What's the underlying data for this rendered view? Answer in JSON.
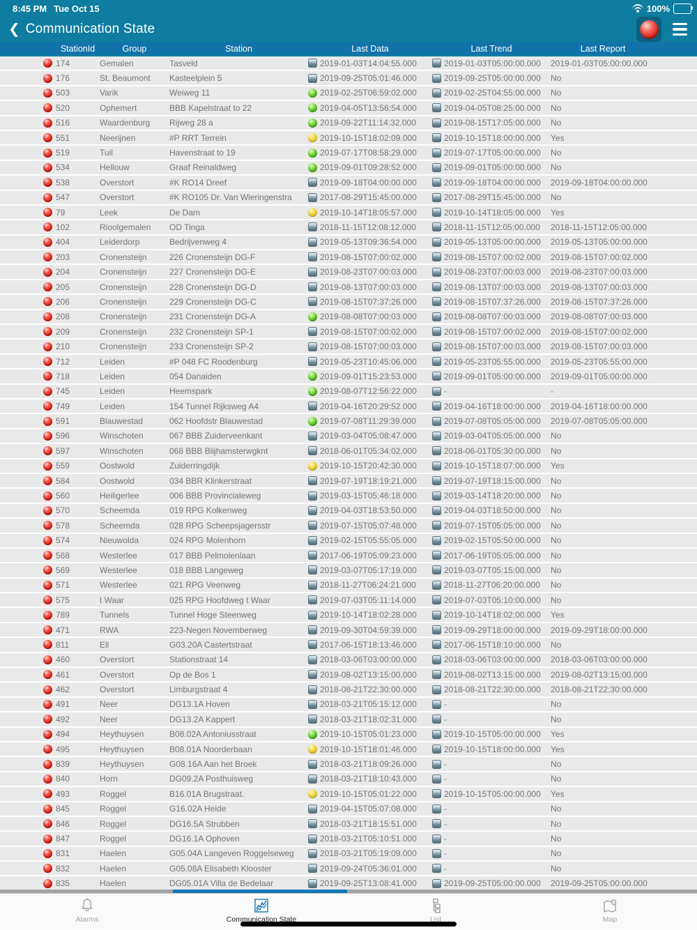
{
  "status_bar": {
    "time": "8:45 PM",
    "date": "Tue Oct 15",
    "battery_percent": "100%"
  },
  "nav": {
    "back_glyph": "❮",
    "title": "Communication State"
  },
  "colors": {
    "nav_teal": "#0E7D9F",
    "column_header_blue": "#1173A9",
    "accent_blue": "#1178B5",
    "row_gray": "#E9E9E9",
    "status_red": "#CF1712",
    "status_green": "#3BA313",
    "status_yellow": "#D9B70A"
  },
  "table": {
    "columns": [
      "StationId",
      "Group",
      "Station",
      "Last Data",
      "Last Trend",
      "Last Report"
    ],
    "rows": [
      {
        "id": "174",
        "group": "Gemalen",
        "station": "Tasveld",
        "data_icon": "disk",
        "data": "2019-01-03T14:04:55.000",
        "trend_icon": "disk",
        "trend": "2019-01-03T05:00:00.000",
        "report": "2019-01-03T05:00:00.000"
      },
      {
        "id": "176",
        "group": "St. Beaumont",
        "station": "Kasteelplein 5",
        "data_icon": "disk",
        "data": "2019-09-25T05:01:46.000",
        "trend_icon": "disk",
        "trend": "2019-09-25T05:00:00.000",
        "report": "No"
      },
      {
        "id": "503",
        "group": "Varik",
        "station": "Weiweg 11",
        "data_icon": "green",
        "data": "2019-02-25T06:59:02.000",
        "trend_icon": "disk",
        "trend": "2019-02-25T04:55:00.000",
        "report": "No"
      },
      {
        "id": "520",
        "group": "Ophemert",
        "station": "BBB Kapelstraat to 22",
        "data_icon": "green",
        "data": "2019-04-05T13:56:54.000",
        "trend_icon": "disk",
        "trend": "2019-04-05T08:25:00.000",
        "report": "No"
      },
      {
        "id": "516",
        "group": "Waardenburg",
        "station": "Rijweg 28 a",
        "data_icon": "green",
        "data": "2019-09-22T11:14:32.000",
        "trend_icon": "disk",
        "trend": "2019-08-15T17:05:00.000",
        "report": "No"
      },
      {
        "id": "551",
        "group": "Neerijnen",
        "station": "#P RRT Terrein",
        "data_icon": "yellow",
        "data": "2019-10-15T18:02:09.000",
        "trend_icon": "disk",
        "trend": "2019-10-15T18:00:00.000",
        "report": "Yes"
      },
      {
        "id": "519",
        "group": "Tuil",
        "station": "Havenstraat to 19",
        "data_icon": "green",
        "data": "2019-07-17T08:58:29.000",
        "trend_icon": "disk",
        "trend": "2019-07-17T05:00:00.000",
        "report": "No"
      },
      {
        "id": "534",
        "group": "Hellouw",
        "station": "Graaf Reinaldweg",
        "data_icon": "green",
        "data": "2019-09-01T09:28:52.000",
        "trend_icon": "disk",
        "trend": "2019-09-01T05:00:00.000",
        "report": "No"
      },
      {
        "id": "538",
        "group": "Overstort",
        "station": "#K RO14 Dreef",
        "data_icon": "disk",
        "data": "2019-09-18T04:00:00.000",
        "trend_icon": "disk",
        "trend": "2019-09-18T04:00:00.000",
        "report": "2019-09-18T04:00:00.000"
      },
      {
        "id": "547",
        "group": "Overstort",
        "station": "#K RO105 Dr. Van Wieringenstra",
        "data_icon": "disk",
        "data": "2017-08-29T15:45:00.000",
        "trend_icon": "disk",
        "trend": "2017-08-29T15:45:00.000",
        "report": "No"
      },
      {
        "id": "79",
        "group": "Leek",
        "station": "De Dam",
        "data_icon": "yellow",
        "data": "2019-10-14T18:05:57.000",
        "trend_icon": "disk",
        "trend": "2019-10-14T18:05:00.000",
        "report": "Yes"
      },
      {
        "id": "102",
        "group": "Rioolgemalen",
        "station": "OD Tinga",
        "data_icon": "disk",
        "data": "2018-11-15T12:08:12.000",
        "trend_icon": "disk",
        "trend": "2018-11-15T12:05:00.000",
        "report": "2018-11-15T12:05:00.000"
      },
      {
        "id": "404",
        "group": "Leiderdorp",
        "station": "Bedrijvenweg 4",
        "data_icon": "disk",
        "data": "2019-05-13T09:36:54.000",
        "trend_icon": "disk",
        "trend": "2019-05-13T05:00:00.000",
        "report": "2019-05-13T05:00:00.000"
      },
      {
        "id": "203",
        "group": "Cronensteijn",
        "station": "226 Cronensteijn DG-F",
        "data_icon": "disk",
        "data": "2019-08-15T07:00:02.000",
        "trend_icon": "disk",
        "trend": "2019-08-15T07:00:02.000",
        "report": "2019-08-15T07:00:02.000"
      },
      {
        "id": "204",
        "group": "Cronensteijn",
        "station": "227 Cronensteijn DG-E",
        "data_icon": "disk",
        "data": "2019-08-23T07:00:03.000",
        "trend_icon": "disk",
        "trend": "2019-08-23T07:00:03.000",
        "report": "2019-08-23T07:00:03.000"
      },
      {
        "id": "205",
        "group": "Cronensteijn",
        "station": "228 Cronensteijn DG-D",
        "data_icon": "disk",
        "data": "2019-08-13T07:00:03.000",
        "trend_icon": "disk",
        "trend": "2019-08-13T07:00:03.000",
        "report": "2019-08-13T07:00:03.000"
      },
      {
        "id": "206",
        "group": "Cronensteijn",
        "station": "229 Cronensteijn DG-C",
        "data_icon": "disk",
        "data": "2019-08-15T07:37:26.000",
        "trend_icon": "disk",
        "trend": "2019-08-15T07:37:26.000",
        "report": "2019-08-15T07:37:26.000"
      },
      {
        "id": "208",
        "group": "Cronensteijn",
        "station": "231 Cronensteijn DG-A",
        "data_icon": "green",
        "data": "2019-08-08T07:00:03.000",
        "trend_icon": "disk",
        "trend": "2019-08-08T07:00:03.000",
        "report": "2019-08-08T07:00:03.000"
      },
      {
        "id": "209",
        "group": "Cronensteijn",
        "station": "232 Cronensteijn SP-1",
        "data_icon": "disk",
        "data": "2019-08-15T07:00:02.000",
        "trend_icon": "disk",
        "trend": "2019-08-15T07:00:02.000",
        "report": "2019-08-15T07:00:02.000"
      },
      {
        "id": "210",
        "group": "Cronensteijn",
        "station": "233 Cronensteijn SP-2",
        "data_icon": "disk",
        "data": "2019-08-15T07:00:03.000",
        "trend_icon": "disk",
        "trend": "2019-08-15T07:00:03.000",
        "report": "2019-08-15T07:00:03.000"
      },
      {
        "id": "712",
        "group": "Leiden",
        "station": "#P 048 FC Roodenburg",
        "data_icon": "disk",
        "data": "2019-05-23T10:45:06.000",
        "trend_icon": "disk",
        "trend": "2019-05-23T05:55:00.000",
        "report": "2019-05-23T05:55:00.000"
      },
      {
        "id": "718",
        "group": "Leiden",
        "station": "054 Danaiden",
        "data_icon": "green",
        "data": "2019-09-01T15:23:53.000",
        "trend_icon": "disk",
        "trend": "2019-09-01T05:00:00.000",
        "report": "2019-09-01T05:00:00.000"
      },
      {
        "id": "745",
        "group": "Leiden",
        "station": "Heemspark",
        "data_icon": "green",
        "data": "2019-08-07T12:56:22.000",
        "trend_icon": "disk",
        "trend": "-",
        "report": "-"
      },
      {
        "id": "749",
        "group": "Leiden",
        "station": "154 Tunnel Rijksweg A4",
        "data_icon": "disk",
        "data": "2019-04-16T20:29:52.000",
        "trend_icon": "disk",
        "trend": "2019-04-16T18:00:00.000",
        "report": "2019-04-16T18:00:00.000"
      },
      {
        "id": "591",
        "group": "Blauwestad",
        "station": "062 Hoofdstr Blauwestad",
        "data_icon": "green",
        "data": "2019-07-08T11:29:39.000",
        "trend_icon": "disk",
        "trend": "2019-07-08T05:05:00.000",
        "report": "2019-07-08T05:05:00.000"
      },
      {
        "id": "596",
        "group": "Winschoten",
        "station": "067 BBB Zuiderveenkant",
        "data_icon": "disk",
        "data": "2019-03-04T05:08:47.000",
        "trend_icon": "disk",
        "trend": "2019-03-04T05:05:00.000",
        "report": "No"
      },
      {
        "id": "597",
        "group": "Winschoten",
        "station": "068 BBB Blijhamsterwgknt",
        "data_icon": "disk",
        "data": "2018-06-01T05:34:02.000",
        "trend_icon": "disk",
        "trend": "2018-06-01T05:30:00.000",
        "report": "No"
      },
      {
        "id": "559",
        "group": "Oostwold",
        "station": "Zuiderringdijk",
        "data_icon": "yellow",
        "data": "2019-10-15T20:42:30.000",
        "trend_icon": "disk",
        "trend": "2019-10-15T18:07:00.000",
        "report": "Yes"
      },
      {
        "id": "584",
        "group": "Oostwold",
        "station": "034 BBR Klinkerstraat",
        "data_icon": "disk",
        "data": "2019-07-19T18:19:21.000",
        "trend_icon": "disk",
        "trend": "2019-07-19T18:15:00.000",
        "report": "No"
      },
      {
        "id": "560",
        "group": "Heiligerlee",
        "station": "006 BBB Provincialeweg",
        "data_icon": "disk",
        "data": "2019-03-15T05:46:18.000",
        "trend_icon": "disk",
        "trend": "2019-03-14T18:20:00.000",
        "report": "No"
      },
      {
        "id": "570",
        "group": "Scheemda",
        "station": "019 RPG Kolkenweg",
        "data_icon": "disk",
        "data": "2019-04-03T18:53:50.000",
        "trend_icon": "disk",
        "trend": "2019-04-03T18:50:00.000",
        "report": "No"
      },
      {
        "id": "578",
        "group": "Scheemda",
        "station": "028 RPG Scheepsjagersstr",
        "data_icon": "disk",
        "data": "2019-07-15T05:07:48.000",
        "trend_icon": "disk",
        "trend": "2019-07-15T05:05:00.000",
        "report": "No"
      },
      {
        "id": "574",
        "group": "Nieuwolda",
        "station": "024 RPG Molenhorn",
        "data_icon": "disk",
        "data": "2019-02-15T05:55:05.000",
        "trend_icon": "disk",
        "trend": "2019-02-15T05:50:00.000",
        "report": "No"
      },
      {
        "id": "568",
        "group": "Westerlee",
        "station": "017 BBB Pelmolenlaan",
        "data_icon": "disk",
        "data": "2017-06-19T05:09:23.000",
        "trend_icon": "disk",
        "trend": "2017-06-19T05:05:00.000",
        "report": "No"
      },
      {
        "id": "569",
        "group": "Westerlee",
        "station": "018 BBB Langeweg",
        "data_icon": "disk",
        "data": "2019-03-07T05:17:19.000",
        "trend_icon": "disk",
        "trend": "2019-03-07T05:15:00.000",
        "report": "No"
      },
      {
        "id": "571",
        "group": "Westerlee",
        "station": "021 RPG Veenweg",
        "data_icon": "disk",
        "data": "2018-11-27T06:24:21.000",
        "trend_icon": "disk",
        "trend": "2018-11-27T06:20:00.000",
        "report": "No"
      },
      {
        "id": "575",
        "group": "t Waar",
        "station": "025 RPG Hoofdweg t Waar",
        "data_icon": "disk",
        "data": "2019-07-03T05:11:14.000",
        "trend_icon": "disk",
        "trend": "2019-07-03T05:10:00.000",
        "report": "No"
      },
      {
        "id": "789",
        "group": "Tunnels",
        "station": "Tunnel Hoge Steenweg",
        "data_icon": "disk",
        "data": "2019-10-14T18:02:28.000",
        "trend_icon": "disk",
        "trend": "2019-10-14T18:02:00.000",
        "report": "Yes"
      },
      {
        "id": "471",
        "group": "RWA",
        "station": "223-Negen Novemberweg",
        "data_icon": "disk",
        "data": "2019-09-30T04:59:39.000",
        "trend_icon": "disk",
        "trend": "2019-09-29T18:00:00.000",
        "report": "2019-09-29T18:00:00.000"
      },
      {
        "id": "811",
        "group": "Ell",
        "station": "G03.20A Castertstraat",
        "data_icon": "disk",
        "data": "2017-06-15T18:13:46.000",
        "trend_icon": "disk",
        "trend": "2017-06-15T18:10:00.000",
        "report": "No"
      },
      {
        "id": "460",
        "group": "Overstort",
        "station": "Stationstraat 14",
        "data_icon": "disk",
        "data": "2018-03-06T03:00:00.000",
        "trend_icon": "disk",
        "trend": "2018-03-06T03:00:00.000",
        "report": "2018-03-06T03:00:00.000"
      },
      {
        "id": "461",
        "group": "Overstort",
        "station": "Op de Bos 1",
        "data_icon": "disk",
        "data": "2019-08-02T13:15:00.000",
        "trend_icon": "disk",
        "trend": "2019-08-02T13:15:00.000",
        "report": "2019-08-02T13:15:00.000"
      },
      {
        "id": "462",
        "group": "Overstort",
        "station": "Limburgstraat 4",
        "data_icon": "disk",
        "data": "2018-08-21T22:30:00.000",
        "trend_icon": "disk",
        "trend": "2018-08-21T22:30:00.000",
        "report": "2018-08-21T22:30:00.000"
      },
      {
        "id": "491",
        "group": "Neer",
        "station": "DG13.1A Hoven",
        "data_icon": "disk",
        "data": "2018-03-21T05:15:12.000",
        "trend_icon": "disk",
        "trend": "-",
        "report": "No"
      },
      {
        "id": "492",
        "group": "Neer",
        "station": "DG13.2A Kappert",
        "data_icon": "disk",
        "data": "2018-03-21T18:02:31.000",
        "trend_icon": "disk",
        "trend": "-",
        "report": "No"
      },
      {
        "id": "494",
        "group": "Heythuysen",
        "station": "B08.02A Antoniusstraat",
        "data_icon": "green",
        "data": "2019-10-15T05:01:23.000",
        "trend_icon": "disk",
        "trend": "2019-10-15T05:00:00.000",
        "report": "Yes"
      },
      {
        "id": "495",
        "group": "Heythuysen",
        "station": "B08.01A Noorderbaan",
        "data_icon": "yellow",
        "data": "2019-10-15T18:01:46.000",
        "trend_icon": "disk",
        "trend": "2019-10-15T18:00:00.000",
        "report": "Yes"
      },
      {
        "id": "839",
        "group": "Heythuysen",
        "station": "G08.16A Aan het Broek",
        "data_icon": "disk",
        "data": "2018-03-21T18:09:26.000",
        "trend_icon": "disk",
        "trend": "-",
        "report": "No"
      },
      {
        "id": "840",
        "group": "Horn",
        "station": "DG09.2A Posthuisweg",
        "data_icon": "disk",
        "data": "2018-03-21T18:10:43.000",
        "trend_icon": "disk",
        "trend": "-",
        "report": "No"
      },
      {
        "id": "493",
        "group": "Roggel",
        "station": "B16.01A Brugstraat.",
        "data_icon": "yellow",
        "data": "2019-10-15T05:01:22.000",
        "trend_icon": "disk",
        "trend": "2019-10-15T05:00:00.000",
        "report": "Yes"
      },
      {
        "id": "845",
        "group": "Roggel",
        "station": "G16.02A Heide",
        "data_icon": "disk",
        "data": "2019-04-15T05:07:08.000",
        "trend_icon": "disk",
        "trend": "-",
        "report": "No"
      },
      {
        "id": "846",
        "group": "Roggel",
        "station": "DG16.5A Strubben",
        "data_icon": "disk",
        "data": "2018-03-21T18:15:51.000",
        "trend_icon": "disk",
        "trend": "-",
        "report": "No"
      },
      {
        "id": "847",
        "group": "Roggel",
        "station": "DG16.1A Ophoven",
        "data_icon": "disk",
        "data": "2018-03-21T05:10:51.000",
        "trend_icon": "disk",
        "trend": "-",
        "report": "No"
      },
      {
        "id": "831",
        "group": "Haelen",
        "station": "G05.04A Langeven Roggelseweg",
        "data_icon": "disk",
        "data": "2018-03-21T05:19:09.000",
        "trend_icon": "disk",
        "trend": "-",
        "report": "No"
      },
      {
        "id": "832",
        "group": "Haelen",
        "station": "G05.08A Elisabeth Klooster",
        "data_icon": "disk",
        "data": "2019-09-24T05:36:01.000",
        "trend_icon": "disk",
        "trend": "-",
        "report": "No"
      },
      {
        "id": "835",
        "group": "Haelen",
        "station": "DG05.01A Villa de Bedelaar",
        "data_icon": "disk",
        "data": "2019-09-25T13:08:41.000",
        "trend_icon": "disk",
        "trend": "2019-09-25T05:00:00.000",
        "report": "2019-09-25T05:00:00.000"
      }
    ]
  },
  "tab_bar": {
    "items": [
      {
        "label": "Alarms",
        "selected": false
      },
      {
        "label": "Communication State",
        "selected": true
      },
      {
        "label": "List",
        "selected": false
      },
      {
        "label": "Map",
        "selected": false
      }
    ]
  }
}
